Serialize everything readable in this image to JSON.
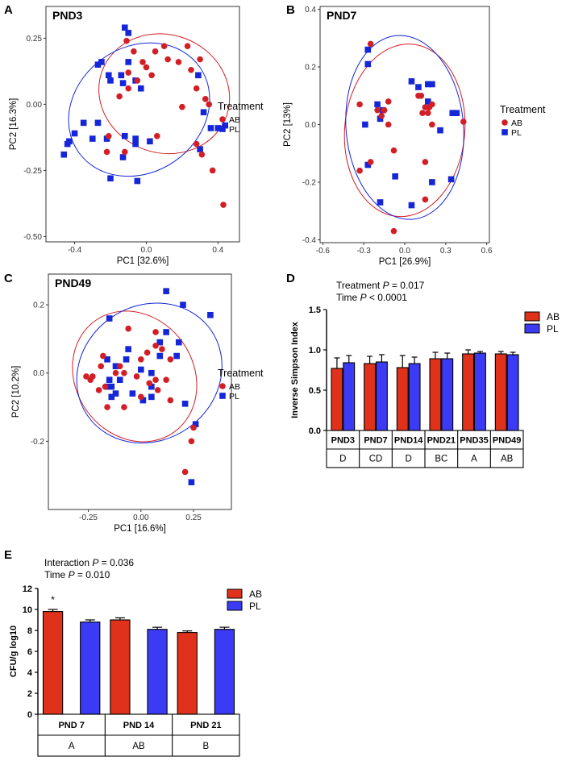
{
  "colors": {
    "AB": "#d21f26",
    "PL": "#1426d8",
    "barAB": "#e0321b",
    "barPL": "#3b3bf6"
  },
  "pca_panels": [
    {
      "letter": "A",
      "title": "PND3",
      "xlabel": "PC1 [32.6%]",
      "ylabel": "PC2 [16.3%]",
      "xlim": [
        -0.56,
        0.52
      ],
      "ylim": [
        -0.52,
        0.37
      ],
      "xticks": [
        -0.4,
        0.0,
        0.4
      ],
      "xtick_labels": [
        "-0.4",
        "0.0",
        "0.4"
      ],
      "yticks": [
        0.25,
        0.0,
        -0.25,
        -0.5
      ],
      "ytick_labels": [
        "0.25",
        "0.00",
        "-0.25",
        "-0.50"
      ],
      "legend_title": "Treatment",
      "legend": [
        "AB",
        "PL"
      ],
      "ellipses": {
        "AB": {
          "cx": 0.1,
          "cy": 0.04,
          "rx": 0.33,
          "ry": 0.25,
          "angle": 70
        },
        "PL": {
          "cx": -0.04,
          "cy": -0.02,
          "rx": 0.35,
          "ry": 0.28,
          "angle": -55
        }
      },
      "points": {
        "AB": [
          [
            -0.11,
            0.24
          ],
          [
            -0.07,
            0.2
          ],
          [
            -0.02,
            0.16
          ],
          [
            -0.1,
            0.12
          ],
          [
            -0.05,
            0.09
          ],
          [
            0.0,
            0.14
          ],
          [
            0.03,
            0.11
          ],
          [
            0.05,
            0.2
          ],
          [
            0.1,
            0.22
          ],
          [
            0.12,
            0.17
          ],
          [
            0.18,
            0.16
          ],
          [
            0.23,
            0.22
          ],
          [
            0.3,
            0.17
          ],
          [
            0.25,
            0.13
          ],
          [
            0.28,
            0.06
          ],
          [
            0.33,
            0.02
          ],
          [
            0.35,
            0.0
          ],
          [
            0.2,
            -0.01
          ],
          [
            -0.15,
            0.03
          ],
          [
            -0.1,
            0.06
          ],
          [
            -0.21,
            -0.12
          ],
          [
            -0.22,
            -0.18
          ],
          [
            -0.12,
            -0.18
          ],
          [
            0.06,
            -0.12
          ],
          [
            0.28,
            -0.15
          ],
          [
            0.31,
            -0.19
          ],
          [
            0.37,
            -0.25
          ],
          [
            0.43,
            -0.38
          ]
        ],
        "PL": [
          [
            -0.12,
            0.29
          ],
          [
            -0.1,
            0.27
          ],
          [
            -0.25,
            0.16
          ],
          [
            -0.27,
            0.15
          ],
          [
            -0.21,
            0.11
          ],
          [
            -0.2,
            0.09
          ],
          [
            -0.14,
            0.11
          ],
          [
            -0.13,
            0.08
          ],
          [
            -0.1,
            0.16
          ],
          [
            -0.06,
            0.09
          ],
          [
            -0.03,
            0.06
          ],
          [
            0.29,
            0.11
          ],
          [
            0.32,
            -0.03
          ],
          [
            0.36,
            -0.09
          ],
          [
            0.4,
            -0.09
          ],
          [
            0.44,
            -0.08
          ],
          [
            0.3,
            -0.17
          ],
          [
            -0.27,
            -0.07
          ],
          [
            -0.35,
            -0.07
          ],
          [
            -0.4,
            -0.11
          ],
          [
            -0.43,
            -0.14
          ],
          [
            -0.46,
            -0.19
          ],
          [
            -0.44,
            -0.15
          ],
          [
            -0.3,
            -0.13
          ],
          [
            -0.22,
            -0.13
          ],
          [
            -0.12,
            -0.12
          ],
          [
            -0.06,
            -0.15
          ],
          [
            -0.06,
            -0.13
          ],
          [
            -0.13,
            -0.2
          ],
          [
            -0.05,
            -0.29
          ],
          [
            -0.2,
            -0.28
          ],
          [
            0.02,
            -0.14
          ]
        ]
      }
    },
    {
      "letter": "B",
      "title": "PND7",
      "xlabel": "PC1 [26.9%]",
      "ylabel": "PC2 [13%]",
      "xlim": [
        -0.62,
        0.62
      ],
      "ylim": [
        -0.41,
        0.41
      ],
      "xticks": [
        -0.6,
        -0.3,
        0.0,
        0.3,
        0.6
      ],
      "xtick_labels": [
        "-0.6",
        "-0.3",
        "0.0",
        "0.3",
        "0.6"
      ],
      "yticks": [
        0.4,
        0.2,
        0.0,
        -0.2,
        -0.4
      ],
      "ytick_labels": [
        "0.4",
        "0.2",
        "0.0",
        "-0.2",
        "-0.4"
      ],
      "legend_title": "Treatment",
      "legend": [
        "AB",
        "PL"
      ],
      "ellipses": {
        "AB": {
          "cx": 0.0,
          "cy": -0.02,
          "rx": 0.44,
          "ry": 0.3,
          "angle": -5
        },
        "PL": {
          "cx": 0.0,
          "cy": -0.01,
          "rx": 0.43,
          "ry": 0.32,
          "angle": 5
        }
      },
      "points": {
        "AB": [
          [
            -0.25,
            0.28
          ],
          [
            -0.33,
            0.07
          ],
          [
            -0.2,
            0.05
          ],
          [
            -0.17,
            0.03
          ],
          [
            -0.12,
            0.08
          ],
          [
            -0.15,
            0.05
          ],
          [
            -0.12,
            0.0
          ],
          [
            0.1,
            0.1
          ],
          [
            0.12,
            0.1
          ],
          [
            0.15,
            0.06
          ],
          [
            0.18,
            0.06
          ],
          [
            0.2,
            0.07
          ],
          [
            0.17,
            0.04
          ],
          [
            0.13,
            0.04
          ],
          [
            0.2,
            0.0
          ],
          [
            0.43,
            0.01
          ],
          [
            -0.08,
            -0.09
          ],
          [
            0.15,
            -0.13
          ],
          [
            -0.33,
            -0.16
          ],
          [
            -0.25,
            -0.13
          ],
          [
            0.15,
            -0.26
          ],
          [
            -0.08,
            -0.37
          ]
        ],
        "PL": [
          [
            -0.27,
            0.26
          ],
          [
            -0.27,
            0.21
          ],
          [
            -0.2,
            0.07
          ],
          [
            -0.18,
            0.02
          ],
          [
            -0.16,
            0.05
          ],
          [
            -0.29,
            0.0
          ],
          [
            0.05,
            0.15
          ],
          [
            0.1,
            0.13
          ],
          [
            0.17,
            0.14
          ],
          [
            0.2,
            0.14
          ],
          [
            0.17,
            0.08
          ],
          [
            0.35,
            0.04
          ],
          [
            0.38,
            0.04
          ],
          [
            0.26,
            -0.02
          ],
          [
            -0.27,
            -0.14
          ],
          [
            -0.07,
            -0.18
          ],
          [
            0.2,
            -0.2
          ],
          [
            0.34,
            -0.19
          ],
          [
            -0.18,
            -0.27
          ],
          [
            0.05,
            -0.28
          ]
        ]
      }
    },
    {
      "letter": "C",
      "title": "PND49",
      "xlabel": "PC1 [16.6%]",
      "ylabel": "PC2 [10.2%]",
      "xlim": [
        -0.44,
        0.43
      ],
      "ylim": [
        -0.4,
        0.29
      ],
      "xticks": [
        -0.25,
        0.0,
        0.25
      ],
      "xtick_labels": [
        "-0.25",
        "0.00",
        "0.25"
      ],
      "yticks": [
        0.2,
        0.0,
        -0.2
      ],
      "ytick_labels": [
        "0.2",
        "0.0",
        "-0.2"
      ],
      "legend_title": "Treatment",
      "legend": [
        "AB",
        "PL"
      ],
      "ellipses": {
        "AB": {
          "cx": -0.03,
          "cy": -0.01,
          "rx": 0.28,
          "ry": 0.2,
          "angle": 35
        },
        "PL": {
          "cx": 0.04,
          "cy": 0.0,
          "rx": 0.32,
          "ry": 0.22,
          "angle": -55
        }
      },
      "points": {
        "AB": [
          [
            -0.06,
            0.13
          ],
          [
            0.07,
            0.12
          ],
          [
            -0.18,
            0.05
          ],
          [
            0.0,
            0.04
          ],
          [
            0.03,
            0.06
          ],
          [
            0.07,
            0.08
          ],
          [
            0.1,
            0.07
          ],
          [
            0.14,
            0.04
          ],
          [
            -0.19,
            0.02
          ],
          [
            -0.12,
            0.0
          ],
          [
            -0.1,
            0.02
          ],
          [
            -0.08,
            0.0
          ],
          [
            -0.02,
            -0.01
          ],
          [
            0.04,
            -0.03
          ],
          [
            0.07,
            -0.02
          ],
          [
            0.12,
            -0.02
          ],
          [
            -0.24,
            -0.02
          ],
          [
            -0.23,
            -0.01
          ],
          [
            -0.26,
            -0.01
          ],
          [
            -0.2,
            -0.05
          ],
          [
            -0.17,
            -0.04
          ],
          [
            0.08,
            -0.05
          ],
          [
            0.14,
            -0.08
          ],
          [
            -0.16,
            -0.1
          ],
          [
            0.0,
            -0.07
          ],
          [
            -0.08,
            -0.1
          ],
          [
            0.25,
            -0.16
          ],
          [
            0.24,
            -0.2
          ],
          [
            0.21,
            -0.29
          ]
        ],
        "PL": [
          [
            0.12,
            0.24
          ],
          [
            0.2,
            0.2
          ],
          [
            0.33,
            0.17
          ],
          [
            -0.15,
            0.16
          ],
          [
            0.12,
            0.12
          ],
          [
            0.18,
            0.09
          ],
          [
            0.09,
            0.09
          ],
          [
            0.09,
            0.05
          ],
          [
            0.17,
            0.05
          ],
          [
            -0.06,
            0.07
          ],
          [
            -0.07,
            0.04
          ],
          [
            -0.16,
            0.04
          ],
          [
            -0.12,
            0.02
          ],
          [
            0.0,
            0.01
          ],
          [
            0.05,
            0.0
          ],
          [
            -0.1,
            -0.02
          ],
          [
            -0.15,
            -0.02
          ],
          [
            -0.14,
            -0.04
          ],
          [
            -0.16,
            -0.04
          ],
          [
            -0.14,
            -0.07
          ],
          [
            -0.12,
            -0.06
          ],
          [
            -0.04,
            -0.06
          ],
          [
            0.01,
            -0.08
          ],
          [
            0.05,
            -0.07
          ],
          [
            0.05,
            -0.04
          ],
          [
            0.21,
            -0.09
          ],
          [
            0.26,
            -0.15
          ],
          [
            0.24,
            -0.32
          ]
        ]
      }
    }
  ],
  "panel_D": {
    "letter": "D",
    "stats_lines": [
      {
        "prefix": "Treatment ",
        "p": "P",
        "rest": " = 0.017"
      },
      {
        "prefix": "Time  ",
        "p": "P",
        "rest": " < 0.0001"
      }
    ],
    "ylabel": "Inverse Simpson Index",
    "ylim": [
      0,
      1.5
    ],
    "yticks": [
      0.0,
      0.5,
      1.0,
      1.5
    ],
    "ytick_labels": [
      "0.0",
      "0.5",
      "1.0",
      "1.5"
    ],
    "legend": [
      "AB",
      "PL"
    ],
    "chart_data": {
      "type": "bar",
      "categories": [
        "PND3",
        "PND7",
        "PND14",
        "PND21",
        "PND35",
        "PND49"
      ],
      "series": [
        {
          "name": "AB",
          "values": [
            0.77,
            0.83,
            0.78,
            0.89,
            0.95,
            0.95
          ],
          "errors": [
            0.13,
            0.09,
            0.15,
            0.08,
            0.05,
            0.03
          ]
        },
        {
          "name": "PL",
          "values": [
            0.84,
            0.85,
            0.83,
            0.89,
            0.96,
            0.94
          ],
          "errors": [
            0.09,
            0.09,
            0.08,
            0.07,
            0.02,
            0.03
          ]
        }
      ],
      "group_letters": [
        "D",
        "CD",
        "D",
        "BC",
        "A",
        "AB"
      ]
    }
  },
  "panel_E": {
    "letter": "E",
    "stats_lines": [
      {
        "prefix": "Interaction ",
        "p": "P",
        "rest": " = 0.036"
      },
      {
        "prefix": "Time ",
        "p": "P",
        "rest": " = 0.010"
      }
    ],
    "ylabel": "CFU/g log10",
    "ylim": [
      0,
      12
    ],
    "yticks": [
      0,
      2,
      4,
      6,
      8,
      10,
      12
    ],
    "ytick_labels": [
      "0",
      "2",
      "4",
      "6",
      "8",
      "10",
      "12"
    ],
    "legend": [
      "AB",
      "PL"
    ],
    "significance_marker": "*",
    "chart_data": {
      "type": "bar",
      "categories": [
        "PND 7",
        "PND 14",
        "PND 21"
      ],
      "series": [
        {
          "name": "AB",
          "values": [
            9.8,
            9.0,
            7.8
          ],
          "errors": [
            0.2,
            0.2,
            0.15
          ]
        },
        {
          "name": "PL",
          "values": [
            8.8,
            8.1,
            8.1
          ],
          "errors": [
            0.2,
            0.2,
            0.2
          ]
        }
      ],
      "group_letters": [
        "A",
        "AB",
        "B"
      ]
    }
  }
}
